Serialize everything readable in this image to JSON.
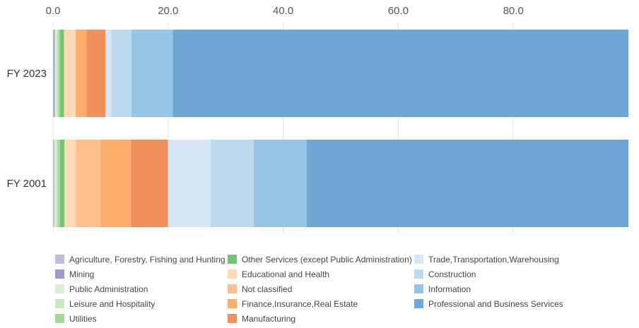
{
  "chart_data": {
    "type": "bar",
    "orientation": "horizontal",
    "stacked": true,
    "categories": [
      "FY 2023",
      "FY 2001"
    ],
    "xlim": [
      0,
      100
    ],
    "x_ticks": [
      "0.0",
      "20.0",
      "40.0",
      "60.0",
      "80.0"
    ],
    "x_tick_values": [
      0,
      20,
      40,
      60,
      80
    ],
    "axis_position": "top",
    "grid": true,
    "legend_position": "bottom",
    "title": "",
    "xlabel": "",
    "ylabel": "",
    "series": [
      {
        "name": "Agriculture, Forestry, Fishing and Hunting",
        "color": "#bcbddc",
        "values": [
          0.1,
          0.1
        ]
      },
      {
        "name": "Mining",
        "color": "#9e9ac8",
        "values": [
          0.2,
          0.1
        ]
      },
      {
        "name": "Public Administration",
        "color": "#d9f0d3",
        "values": [
          0.3,
          0.3
        ]
      },
      {
        "name": "Leisure and Hospitality",
        "color": "#c7e9c0",
        "values": [
          0.3,
          0.3
        ]
      },
      {
        "name": "Utilities",
        "color": "#a1d99b",
        "values": [
          0.3,
          0.4
        ]
      },
      {
        "name": "Other Services (except Public Administration)",
        "color": "#74c476",
        "values": [
          0.7,
          0.8
        ]
      },
      {
        "name": "Educational and Health",
        "color": "#fdd9b5",
        "values": [
          2.0,
          2.0
        ]
      },
      {
        "name": "Not classified",
        "color": "#fdc08c",
        "values": [
          0.1,
          4.3
        ]
      },
      {
        "name": "Finance,Insurance,Real Estate",
        "color": "#fdae6b",
        "values": [
          1.8,
          5.2
        ]
      },
      {
        "name": "Manufacturing",
        "color": "#f0905a",
        "values": [
          3.3,
          6.5
        ]
      },
      {
        "name": "Trade,Transportation,Warehousing",
        "color": "#d6e6f4",
        "values": [
          1.0,
          7.4
        ]
      },
      {
        "name": "Construction",
        "color": "#bcdaeb",
        "values": [
          3.5,
          7.5
        ]
      },
      {
        "name": "Information",
        "color": "#97c5e3",
        "values": [
          7.2,
          9.2
        ]
      },
      {
        "name": "Professional and Business Services",
        "color": "#6fa6d3",
        "values": [
          79.2,
          55.9
        ]
      }
    ]
  }
}
